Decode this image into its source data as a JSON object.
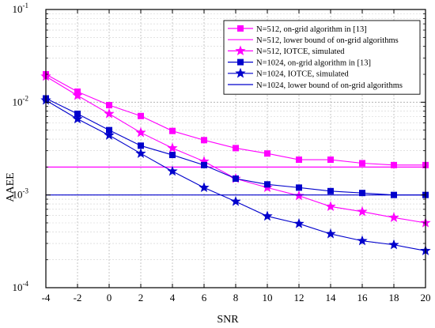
{
  "chart_data": {
    "type": "line",
    "title": "",
    "xlabel": "SNR",
    "ylabel": "AAEE",
    "y_scale": "log",
    "xlim": [
      -4,
      20
    ],
    "ylim": [
      0.0001,
      0.1
    ],
    "grid": true,
    "legend_position": "top-right",
    "x_ticks": [
      "-4",
      "-2",
      "0",
      "2",
      "4",
      "6",
      "8",
      "10",
      "12",
      "14",
      "16",
      "18",
      "20"
    ],
    "y_tick_values": [
      0.0001,
      0.001,
      0.01,
      0.1
    ],
    "y_ticks": [
      {
        "base": "10",
        "exp": "-4"
      },
      {
        "base": "10",
        "exp": "-3"
      },
      {
        "base": "10",
        "exp": "-2"
      },
      {
        "base": "10",
        "exp": "-1"
      }
    ],
    "x": [
      -4,
      -2,
      0,
      2,
      4,
      6,
      8,
      10,
      12,
      14,
      16,
      18,
      20
    ],
    "series": [
      {
        "name": "N=512, on-grid algorithm in [13]",
        "color": "#ff00ff",
        "marker": "square",
        "values": [
          0.02,
          0.013,
          0.0093,
          0.0071,
          0.0049,
          0.0039,
          0.0032,
          0.0028,
          0.0024,
          0.0024,
          0.0022,
          0.0021,
          0.0021
        ]
      },
      {
        "name": "N=512, lower bound of on-grid algorithms",
        "color": "#ff00ff",
        "marker": "none",
        "values": [
          0.002,
          0.002,
          0.002,
          0.002,
          0.002,
          0.002,
          0.002,
          0.002,
          0.002,
          0.002,
          0.002,
          0.002,
          0.002
        ]
      },
      {
        "name": "N=512, IOTCE, simulated",
        "color": "#ff00ff",
        "marker": "star",
        "values": [
          0.019,
          0.0118,
          0.0075,
          0.0047,
          0.0032,
          0.0023,
          0.0015,
          0.0012,
          0.00098,
          0.00075,
          0.00066,
          0.00057,
          0.0005
        ]
      },
      {
        "name": "N=1024, on-grid algorithm in [13]",
        "color": "#0000cc",
        "marker": "square",
        "values": [
          0.011,
          0.0075,
          0.005,
          0.0034,
          0.0027,
          0.0021,
          0.0015,
          0.0013,
          0.0012,
          0.0011,
          0.00105,
          0.001,
          0.001
        ]
      },
      {
        "name": "N=1024, IOTCE, simulated",
        "color": "#0000cc",
        "marker": "star",
        "values": [
          0.0105,
          0.0066,
          0.0044,
          0.0028,
          0.0018,
          0.0012,
          0.00085,
          0.00059,
          0.00049,
          0.00038,
          0.00032,
          0.00029,
          0.00025
        ]
      },
      {
        "name": "N=1024, lower bound of on-grid algorithms",
        "color": "#0000cc",
        "marker": "none",
        "values": [
          0.001,
          0.001,
          0.001,
          0.001,
          0.001,
          0.001,
          0.001,
          0.001,
          0.001,
          0.001,
          0.001,
          0.001,
          0.001
        ]
      }
    ]
  }
}
